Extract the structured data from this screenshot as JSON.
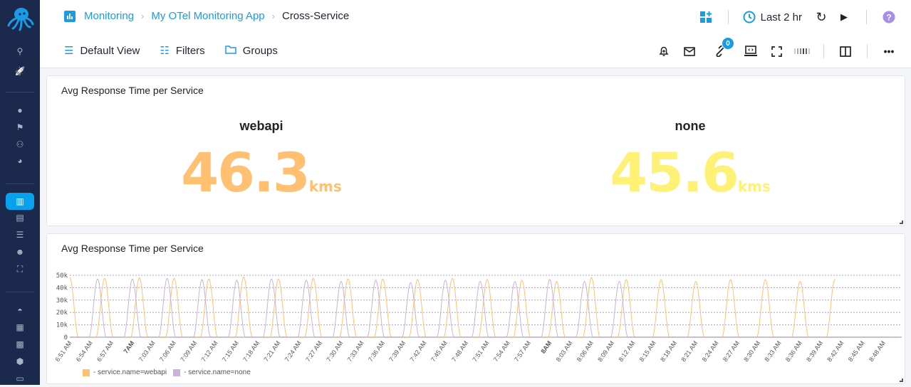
{
  "breadcrumb": [
    "Monitoring",
    "My OTel Monitoring App",
    "Cross-Service"
  ],
  "toolbar": {
    "default_view": "Default View",
    "filters": "Filters",
    "groups": "Groups",
    "time_range": "Last 2 hr",
    "links_badge": "0"
  },
  "icons": {
    "top": [
      "add-panel-icon",
      "clock-icon",
      "refresh-icon",
      "play-icon",
      "help-icon"
    ],
    "tools": [
      "alert-bell-icon",
      "mail-icon",
      "link-icon",
      "embed-icon",
      "fullscreen-icon",
      "density-icon",
      "split-view-icon",
      "more-icon"
    ]
  },
  "sidebar": {
    "items": [
      "search",
      "rocket",
      "alert",
      "flag",
      "topology",
      "dashboard-gauge",
      "monitoring",
      "document",
      "sliders",
      "robot",
      "scan",
      "incognito",
      "table",
      "grid",
      "settings-hex",
      "keyboard"
    ],
    "active": "monitoring"
  },
  "colors": {
    "accent": "#1a9be6",
    "sidebar": "#1b2a4c",
    "webapi": "#ffc072",
    "none": "#fff176",
    "none_line": "#c8b2db"
  },
  "panels": [
    {
      "title": "Avg Response Time per Service",
      "stats": [
        {
          "name": "webapi",
          "value": "46.3",
          "unit": "kms",
          "color": "#ffc072"
        },
        {
          "name": "none",
          "value": "45.6",
          "unit": "kms",
          "color": "#fff176"
        }
      ]
    },
    {
      "title": "Avg Response Time per Service"
    }
  ],
  "chart_data": {
    "type": "line",
    "xlim": [
      "6:51",
      "8:50"
    ],
    "ylim": [
      0,
      50000
    ],
    "yticks": [
      "0",
      "10k",
      "20k",
      "30k",
      "40k",
      "50k"
    ],
    "xticks": [
      "6:51 AM",
      "6:54 AM",
      "6:57 AM",
      "7AM",
      "7:03 AM",
      "7:06 AM",
      "7:09 AM",
      "7:12 AM",
      "7:15 AM",
      "7:18 AM",
      "7:21 AM",
      "7:24 AM",
      "7:27 AM",
      "7:30 AM",
      "7:33 AM",
      "7:36 AM",
      "7:39 AM",
      "7:42 AM",
      "7:45 AM",
      "7:48 AM",
      "7:51 AM",
      "7:54 AM",
      "7:57 AM",
      "8AM",
      "8:03 AM",
      "8:06 AM",
      "8:09 AM",
      "8:12 AM",
      "8:15 AM",
      "8:18 AM",
      "8:21 AM",
      "8:24 AM",
      "8:27 AM",
      "8:30 AM",
      "8:33 AM",
      "8:36 AM",
      "8:39 AM",
      "8:42 AM",
      "8:45 AM",
      "8:48 AM"
    ],
    "grid": true,
    "legend_placement": "bottom-left",
    "series": [
      {
        "name": "- service.name=webapi",
        "color": "#ffc072",
        "peaks": [
          [
            "6:51",
            48000
          ],
          [
            "6:56",
            47500
          ],
          [
            "7:01",
            48000
          ],
          [
            "7:06",
            47500
          ],
          [
            "7:11",
            47000
          ],
          [
            "7:16",
            48500
          ],
          [
            "7:21",
            47000
          ],
          [
            "7:26",
            47500
          ],
          [
            "7:31",
            47000
          ],
          [
            "7:36",
            47000
          ],
          [
            "7:41",
            46500
          ],
          [
            "7:46",
            47500
          ],
          [
            "7:51",
            46500
          ],
          [
            "7:56",
            46000
          ],
          [
            "8:01",
            45000
          ],
          [
            "8:06",
            48000
          ],
          [
            "8:11",
            46500
          ],
          [
            "8:16",
            46500
          ],
          [
            "8:21",
            45000
          ],
          [
            "8:26",
            46500
          ],
          [
            "8:31",
            46500
          ],
          [
            "8:36",
            45000
          ],
          [
            "8:41",
            46500
          ]
        ]
      },
      {
        "name": "- service.name=none",
        "color": "#c8b2db",
        "peaks": [
          [
            "6:55",
            47000
          ],
          [
            "7:00",
            47000
          ],
          [
            "7:05",
            47500
          ],
          [
            "7:10",
            46500
          ],
          [
            "7:15",
            46000
          ],
          [
            "7:20",
            47000
          ],
          [
            "7:25",
            46000
          ],
          [
            "7:30",
            45000
          ],
          [
            "7:35",
            46000
          ],
          [
            "7:40",
            44000
          ],
          [
            "7:45",
            46000
          ],
          [
            "7:50",
            45000
          ],
          [
            "7:55",
            45000
          ],
          [
            "8:00",
            46500
          ],
          [
            "8:05",
            45000
          ],
          [
            "8:10",
            45000
          ]
        ]
      }
    ]
  }
}
